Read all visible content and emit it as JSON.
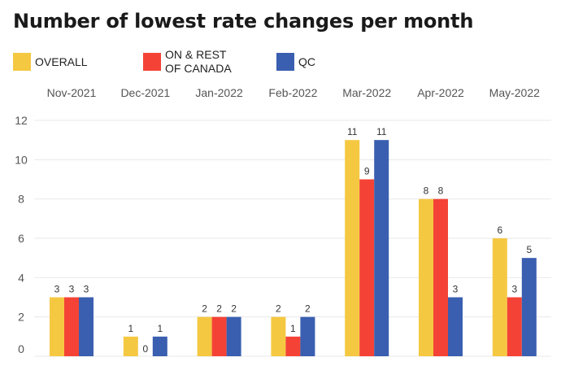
{
  "chart_data": {
    "type": "bar",
    "title": "Number of lowest rate changes per month",
    "categories": [
      "Nov-2021",
      "Dec-2021",
      "Jan-2022",
      "Feb-2022",
      "Mar-2022",
      "Apr-2022",
      "May-2022"
    ],
    "series": [
      {
        "name": "OVERALL",
        "color": "#f5c842",
        "values": [
          3,
          1,
          2,
          2,
          11,
          8,
          6
        ]
      },
      {
        "name": "ON & REST\nOF CANADA",
        "color": "#f44336",
        "values": [
          3,
          0,
          2,
          1,
          9,
          8,
          3
        ]
      },
      {
        "name": "QC",
        "color": "#3a5fb0",
        "values": [
          3,
          1,
          2,
          2,
          11,
          3,
          5
        ]
      }
    ],
    "yticks": [
      0,
      2,
      4,
      6,
      8,
      10,
      12
    ],
    "ylim": [
      0,
      12
    ],
    "xlabel": "",
    "ylabel": "",
    "x_labels_position": "top",
    "legend_position": "top-left",
    "grid": true
  }
}
